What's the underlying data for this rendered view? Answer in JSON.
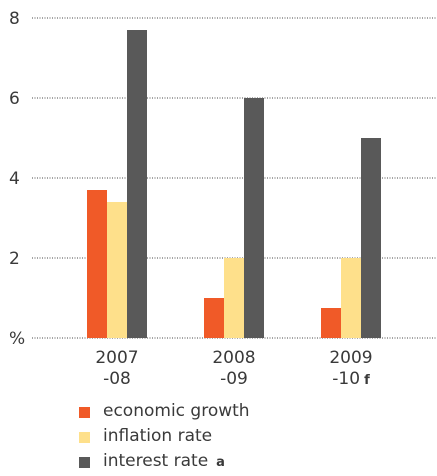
{
  "chart_data": {
    "type": "bar",
    "categories": [
      {
        "line1": "2007",
        "line2": "-08",
        "note": ""
      },
      {
        "line1": "2008",
        "line2": "-09",
        "note": ""
      },
      {
        "line1": "2009",
        "line2": "-10",
        "note": "f"
      }
    ],
    "series": [
      {
        "name": "economic growth",
        "note": "",
        "color": "#f05a28",
        "values": [
          3.7,
          1.0,
          0.75
        ]
      },
      {
        "name": "inflation rate",
        "note": "",
        "color": "#fee08b",
        "values": [
          3.4,
          2.0,
          2.0
        ]
      },
      {
        "name": "interest rate",
        "note": "a",
        "color": "#595959",
        "values": [
          7.7,
          6.0,
          5.0
        ]
      }
    ],
    "y_ticks": [
      "8",
      "6",
      "4",
      "2",
      "%"
    ],
    "ylim": [
      0,
      8
    ],
    "grid": "dotted horizontal",
    "legend_position": "bottom"
  }
}
